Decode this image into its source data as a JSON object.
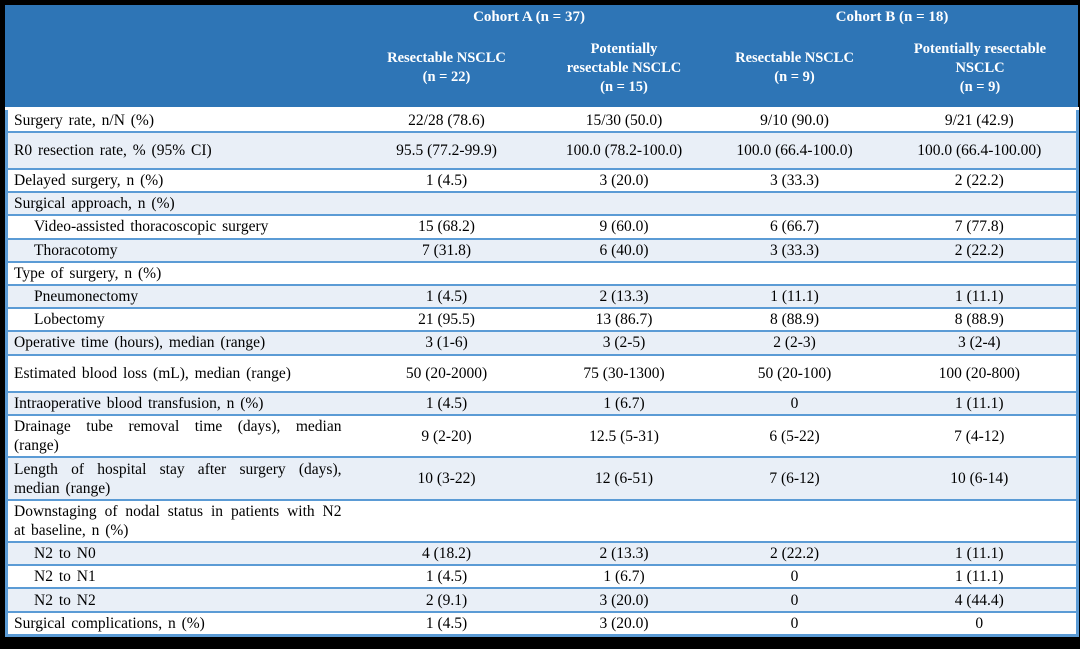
{
  "colors": {
    "header_bg": "#2e75b6",
    "border_blue": "#5b9bd5",
    "band_bg": "#e9eff7",
    "row_bg": "#ffffff",
    "frame_bg": "#000000",
    "header_text": "#ffffff",
    "body_text": "#000000"
  },
  "header": {
    "groups": [
      {
        "label": "Cohort A (n = 37)"
      },
      {
        "label": "Cohort B (n = 18)"
      }
    ],
    "columns": [
      "Resectable NSCLC\n(n = 22)",
      "Potentially\nresectable NSCLC\n(n = 15)",
      "Resectable NSCLC\n(n = 9)",
      "Potentially resectable\nNSCLC\n(n = 9)"
    ]
  },
  "rows": [
    {
      "label": "Surgery rate, n/N (%)",
      "indent": false,
      "values": [
        "22/28 (78.6)",
        "15/30 (50.0)",
        "9/10 (90.0)",
        "9/21 (42.9)"
      ]
    },
    {
      "label": "R0 resection rate, % (95% CI)",
      "indent": false,
      "tall": true,
      "values": [
        "95.5 (77.2-99.9)",
        "100.0 (78.2-100.0)",
        "100.0 (66.4-100.0)",
        "100.0 (66.4-100.00)"
      ]
    },
    {
      "label": "Delayed surgery, n (%)",
      "indent": false,
      "values": [
        "1 (4.5)",
        "3 (20.0)",
        "3 (33.3)",
        "2 (22.2)"
      ]
    },
    {
      "label": "Surgical approach, n (%)",
      "indent": false,
      "values": [
        "",
        "",
        "",
        ""
      ]
    },
    {
      "label": "Video-assisted thoracoscopic surgery",
      "indent": true,
      "values": [
        "15 (68.2)",
        "9 (60.0)",
        "6 (66.7)",
        "7 (77.8)"
      ]
    },
    {
      "label": "Thoracotomy",
      "indent": true,
      "values": [
        "7 (31.8)",
        "6 (40.0)",
        "3 (33.3)",
        "2 (22.2)"
      ]
    },
    {
      "label": "Type of surgery, n (%)",
      "indent": false,
      "values": [
        "",
        "",
        "",
        ""
      ]
    },
    {
      "label": "Pneumonectomy",
      "indent": true,
      "values": [
        "1 (4.5)",
        "2 (13.3)",
        "1 (11.1)",
        "1 (11.1)"
      ]
    },
    {
      "label": "Lobectomy",
      "indent": true,
      "values": [
        "21 (95.5)",
        "13 (86.7)",
        "8 (88.9)",
        "8 (88.9)"
      ]
    },
    {
      "label": "Operative time (hours), median (range)",
      "indent": false,
      "values": [
        "3 (1-6)",
        "3 (2-5)",
        "2 (2-3)",
        "3 (2-4)"
      ]
    },
    {
      "label": "Estimated blood loss (mL), median (range)",
      "indent": false,
      "tall": true,
      "values": [
        "50 (20-2000)",
        "75 (30-1300)",
        "50 (20-100)",
        "100 (20-800)"
      ]
    },
    {
      "label": "Intraoperative blood transfusion, n (%)",
      "indent": false,
      "values": [
        "1 (4.5)",
        "1 (6.7)",
        "0",
        "1 (11.1)"
      ]
    },
    {
      "label": "Drainage tube removal time (days), median (range)",
      "indent": false,
      "twoline": true,
      "values": [
        "9 (2-20)",
        "12.5 (5-31)",
        "6 (5-22)",
        "7 (4-12)"
      ]
    },
    {
      "label": "Length of hospital stay after surgery (days), median (range)",
      "indent": false,
      "twoline": true,
      "values": [
        "10 (3-22)",
        "12 (6-51)",
        "7 (6-12)",
        "10 (6-14)"
      ]
    },
    {
      "label": "Downstaging of nodal status in patients with N2 at baseline, n (%)",
      "indent": false,
      "twoline": true,
      "values": [
        "",
        "",
        "",
        ""
      ]
    },
    {
      "label": "N2 to N0",
      "indent": true,
      "values": [
        "4 (18.2)",
        "2 (13.3)",
        "2 (22.2)",
        "1 (11.1)"
      ]
    },
    {
      "label": "N2 to N1",
      "indent": true,
      "values": [
        "1 (4.5)",
        "1 (6.7)",
        "0",
        "1 (11.1)"
      ]
    },
    {
      "label": "N2 to N2",
      "indent": true,
      "values": [
        "2 (9.1)",
        "3 (20.0)",
        "0",
        "4 (44.4)"
      ]
    },
    {
      "label": "Surgical complications, n (%)",
      "indent": false,
      "values": [
        "1 (4.5)",
        "3 (20.0)",
        "0",
        "0"
      ]
    }
  ]
}
